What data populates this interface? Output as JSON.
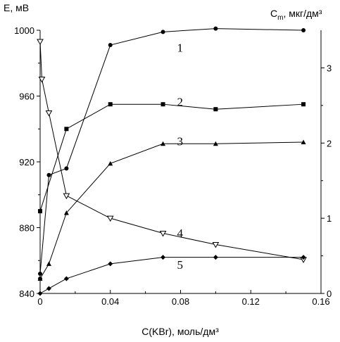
{
  "chart_data": {
    "type": "line",
    "xlabel": "C(KBr), моль/дм³",
    "ylabel_left": "E, мВ",
    "ylabel_right_base": "C",
    "ylabel_right_sub": "m",
    "ylabel_right_rest": ", мкг/дм³",
    "xlim": [
      0,
      0.16
    ],
    "ylim_left": [
      840,
      1000
    ],
    "ylim_right": [
      0,
      3.5
    ],
    "x_ticks": [
      0,
      0.04,
      0.08,
      0.12,
      0.16
    ],
    "x_tick_labels": [
      "0",
      "0.04",
      "0.08",
      "0.12",
      "0.16"
    ],
    "y_left_ticks": [
      840,
      880,
      920,
      960,
      1000
    ],
    "y_left_tick_labels": [
      "840",
      "880",
      "920",
      "960",
      "1000"
    ],
    "y_right_ticks": [
      0,
      1,
      2,
      3
    ],
    "y_right_tick_labels": [
      "0",
      "1",
      "2",
      "3"
    ],
    "grid": false,
    "series": [
      {
        "label": "1",
        "axis": "left",
        "marker": "circle",
        "x": [
          0,
          0.005,
          0.015,
          0.04,
          0.07,
          0.1,
          0.15
        ],
        "y": [
          852,
          912,
          916,
          991,
          999,
          1001,
          1000
        ]
      },
      {
        "label": "2",
        "axis": "left",
        "marker": "square",
        "x": [
          0,
          0.015,
          0.04,
          0.07,
          0.1,
          0.15
        ],
        "y": [
          890,
          940,
          955,
          955,
          952,
          955
        ]
      },
      {
        "label": "3",
        "axis": "left",
        "marker": "triangle",
        "x": [
          0,
          0.005,
          0.015,
          0.04,
          0.07,
          0.1,
          0.15
        ],
        "y": [
          849,
          858,
          889,
          919,
          931,
          931,
          932
        ]
      },
      {
        "label": "4",
        "axis": "right",
        "marker": "triangle-down",
        "x": [
          0,
          0.001,
          0.005,
          0.015,
          0.04,
          0.07,
          0.1,
          0.15
        ],
        "y": [
          3.35,
          2.85,
          2.4,
          1.3,
          1.0,
          0.8,
          0.65,
          0.45
        ]
      },
      {
        "label": "5",
        "axis": "left",
        "marker": "diamond",
        "x": [
          0,
          0.005,
          0.015,
          0.04,
          0.07,
          0.1,
          0.15
        ],
        "y": [
          840,
          843,
          849,
          858,
          862,
          862,
          862
        ]
      }
    ],
    "extra_points": [
      {
        "axis": "left",
        "x": 0,
        "y": 849,
        "marker": "circle"
      }
    ],
    "curve_labels": [
      {
        "text": "1",
        "x": 0.078,
        "y": 987,
        "axis": "left"
      },
      {
        "text": "2",
        "x": 0.078,
        "y": 954,
        "axis": "left"
      },
      {
        "text": "3",
        "x": 0.078,
        "y": 930,
        "axis": "left"
      },
      {
        "text": "4",
        "x": 0.078,
        "y": 0.75,
        "axis": "right"
      },
      {
        "text": "5",
        "x": 0.078,
        "y": 855,
        "axis": "left"
      }
    ]
  }
}
